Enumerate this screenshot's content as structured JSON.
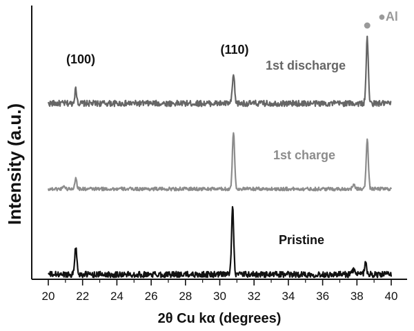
{
  "chart_data": {
    "type": "line",
    "xlabel": "2θ Cu kα (degrees)",
    "ylabel": "Intensity (a.u.)",
    "xlim": [
      20,
      40
    ],
    "x_ticks": [
      20,
      22,
      24,
      26,
      28,
      30,
      32,
      34,
      36,
      38,
      40
    ],
    "y_ticks_shown": false,
    "grid": false,
    "series": [
      {
        "name": "1st discharge",
        "color": "#666666",
        "offset": 2.0,
        "noise": 0.035,
        "peaks": [
          {
            "x": 21.6,
            "height": 0.16
          },
          {
            "x": 30.8,
            "height": 0.33
          },
          {
            "x": 38.6,
            "height": 0.75
          }
        ]
      },
      {
        "name": "1st charge",
        "color": "#8c8c8c",
        "offset": 1.0,
        "noise": 0.02,
        "peaks": [
          {
            "x": 20.9,
            "height": 0.04
          },
          {
            "x": 21.6,
            "height": 0.12
          },
          {
            "x": 30.8,
            "height": 0.67
          },
          {
            "x": 37.8,
            "height": 0.05
          },
          {
            "x": 38.6,
            "height": 0.58
          }
        ]
      },
      {
        "name": "Pristine",
        "color": "#111111",
        "offset": 0.0,
        "noise": 0.035,
        "peaks": [
          {
            "x": 21.6,
            "height": 0.32
          },
          {
            "x": 30.75,
            "height": 0.78
          },
          {
            "x": 37.8,
            "height": 0.06
          },
          {
            "x": 38.5,
            "height": 0.14
          }
        ]
      }
    ],
    "annotations": [
      {
        "text": "(100)",
        "x": 21.4
      },
      {
        "text": "(110)",
        "x": 30.7
      },
      {
        "text": "●Al",
        "x": 38.6
      }
    ]
  }
}
